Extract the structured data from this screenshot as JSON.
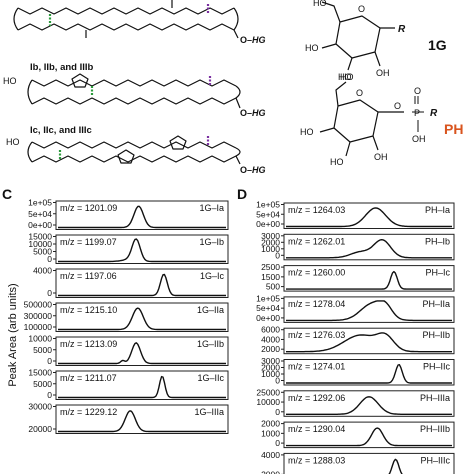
{
  "panel_c_label": "C",
  "panel_d_label": "D",
  "y_axis_label": "Peak Area (arb units)",
  "lipid_labels": {
    "group_b": "Ib, IIb, and IIIb",
    "group_c": "Ic, IIc, and IIIc"
  },
  "headgroup_symbol": "HG",
  "ho_text": "HO",
  "o_text": "O",
  "oh_text": "OH",
  "p_text": "P",
  "r_text": "R",
  "headgroup_labels": {
    "glycosyl": "1G",
    "phospho": "PH"
  },
  "colors": {
    "accent_orange": "#d9541e",
    "marker_green": "#2a9a3a",
    "marker_purple": "#7a2fa0"
  },
  "chart_data": [
    {
      "type": "line",
      "panel": "C",
      "ylabel": "Peak Area (arb units)",
      "subplots": [
        {
          "name": "1G–Ia",
          "mz": "m/z = 1201.09",
          "yticks": [
            "1e+05",
            "5e+04",
            "0e+00"
          ],
          "ylim": [
            0,
            100000
          ],
          "peaks": [
            {
              "x": 0.48,
              "h": 0.95,
              "w": 0.028
            }
          ]
        },
        {
          "name": "1G–Ib",
          "mz": "m/z = 1199.07",
          "yticks": [
            "15000",
            "10000",
            "5000",
            "0"
          ],
          "ylim": [
            0,
            16000
          ],
          "peaks": [
            {
              "x": 0.465,
              "h": 0.97,
              "w": 0.024
            },
            {
              "x": 0.42,
              "h": 0.08,
              "w": 0.04
            }
          ]
        },
        {
          "name": "1G–Ic",
          "mz": "m/z = 1197.06",
          "yticks": [
            "4000",
            "0"
          ],
          "ylim": [
            0,
            5500
          ],
          "peaks": [
            {
              "x": 0.63,
              "h": 0.95,
              "w": 0.02
            }
          ]
        },
        {
          "name": "1G–IIa",
          "mz": "m/z = 1215.10",
          "yticks": [
            "500000",
            "300000",
            "100000"
          ],
          "ylim": [
            0,
            550000
          ],
          "peaks": [
            {
              "x": 0.475,
              "h": 0.95,
              "w": 0.032
            }
          ]
        },
        {
          "name": "1G–IIb",
          "mz": "m/z = 1213.09",
          "yticks": [
            "10000",
            "5000",
            "0"
          ],
          "ylim": [
            0,
            11000
          ],
          "peaks": [
            {
              "x": 0.465,
              "h": 0.92,
              "w": 0.026
            },
            {
              "x": 0.385,
              "h": 0.13,
              "w": 0.012
            }
          ]
        },
        {
          "name": "1G–IIc",
          "mz": "m/z = 1211.07",
          "yticks": [
            "15000",
            "5000",
            "0"
          ],
          "ylim": [
            0,
            17000
          ],
          "peaks": [
            {
              "x": 0.62,
              "h": 0.95,
              "w": 0.016
            }
          ]
        },
        {
          "name": "1G–IIIa",
          "mz": "m/z = 1229.12",
          "yticks": [
            "30000",
            "20000"
          ],
          "ylim": [
            0,
            35000
          ],
          "peaks": [
            {
              "x": 0.43,
              "h": 0.92,
              "w": 0.03
            }
          ]
        }
      ]
    },
    {
      "type": "line",
      "panel": "D",
      "subplots": [
        {
          "name": "PH–Ia",
          "mz": "m/z = 1264.03",
          "yticks": [
            "1e+05",
            "5e+04",
            "0e+00"
          ],
          "ylim": [
            0,
            100000
          ],
          "peaks": [
            {
              "x": 0.54,
              "h": 0.95,
              "w": 0.06
            }
          ]
        },
        {
          "name": "PH–Ib",
          "mz": "m/z = 1262.01",
          "yticks": [
            "3000",
            "2000",
            "1000",
            "0"
          ],
          "ylim": [
            0,
            3300
          ],
          "peaks": [
            {
              "x": 0.58,
              "h": 0.9,
              "w": 0.05
            },
            {
              "x": 0.45,
              "h": 0.3,
              "w": 0.06
            }
          ]
        },
        {
          "name": "PH–Ic",
          "mz": "m/z = 1260.00",
          "yticks": [
            "2500",
            "1500",
            "500"
          ],
          "ylim": [
            0,
            3000
          ],
          "peaks": [
            {
              "x": 0.65,
              "h": 0.9,
              "w": 0.02
            }
          ]
        },
        {
          "name": "PH–IIa",
          "mz": "m/z = 1278.04",
          "yticks": [
            "1e+05",
            "5e+04",
            "0e+00"
          ],
          "ylim": [
            0,
            100000
          ],
          "peaks": [
            {
              "x": 0.52,
              "h": 0.85,
              "w": 0.07
            },
            {
              "x": 0.6,
              "h": 0.5,
              "w": 0.04
            }
          ]
        },
        {
          "name": "PH–IIb",
          "mz": "m/z = 1276.03",
          "yticks": [
            "6000",
            "4000",
            "2000"
          ],
          "ylim": [
            0,
            6500
          ],
          "peaks": [
            {
              "x": 0.45,
              "h": 0.85,
              "w": 0.1
            },
            {
              "x": 0.6,
              "h": 0.65,
              "w": 0.05
            }
          ]
        },
        {
          "name": "PH–IIc",
          "mz": "m/z = 1274.01",
          "yticks": [
            "3000",
            "2000",
            "1000",
            "0"
          ],
          "ylim": [
            0,
            3300
          ],
          "peaks": [
            {
              "x": 0.68,
              "h": 0.95,
              "w": 0.02
            }
          ]
        },
        {
          "name": "PH–IIIa",
          "mz": "m/z = 1292.06",
          "yticks": [
            "25000",
            "10000",
            "0"
          ],
          "ylim": [
            0,
            30000
          ],
          "peaks": [
            {
              "x": 0.5,
              "h": 0.9,
              "w": 0.055
            }
          ]
        },
        {
          "name": "PH–IIIb",
          "mz": "m/z = 1290.04",
          "yticks": [
            "2000",
            "1000",
            "0"
          ],
          "ylim": [
            0,
            2200
          ],
          "peaks": [
            {
              "x": 0.55,
              "h": 0.9,
              "w": 0.035
            }
          ]
        },
        {
          "name": "PH–IIIc",
          "mz": "m/z = 1288.03",
          "yticks": [
            "4000",
            "2000"
          ],
          "ylim": [
            0,
            4500
          ],
          "peaks": [
            {
              "x": 0.66,
              "h": 0.9,
              "w": 0.02
            }
          ]
        }
      ]
    }
  ]
}
